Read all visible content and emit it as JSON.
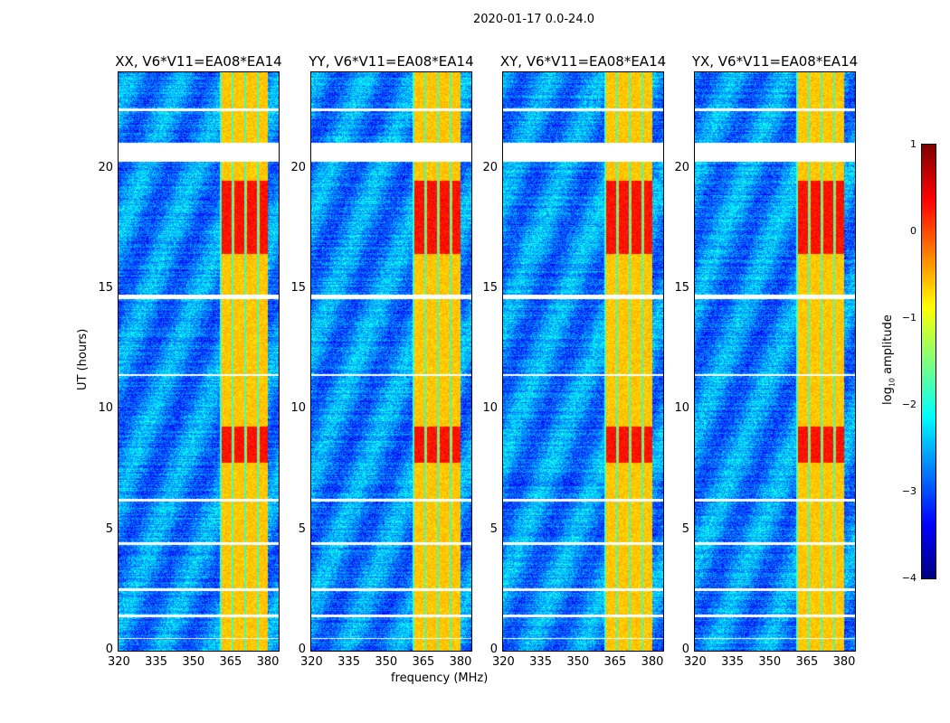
{
  "figure_title": "2020-01-17 0.0-24.0",
  "chart_data": {
    "type": "heatmap",
    "title": "2020-01-17 0.0-24.0",
    "xlabel": "frequency (MHz)",
    "ylabel": "UT (hours)",
    "xlim": [
      320,
      384.5
    ],
    "ylim": [
      0,
      24
    ],
    "xticks": [
      "320",
      "335",
      "350",
      "365",
      "380"
    ],
    "yticks": [
      "0",
      "5",
      "10",
      "15",
      "20"
    ],
    "panels": [
      {
        "title": "XX, V6*V11=EA08*EA14"
      },
      {
        "title": "YY, V6*V11=EA08*EA14"
      },
      {
        "title": "XY, V6*V11=EA08*EA14"
      },
      {
        "title": "YX, V6*V11=EA08*EA14"
      }
    ],
    "colorbar": {
      "label_main": "log",
      "label_sub": "10",
      "label_tail": " amplitude",
      "range": [
        -4,
        1
      ],
      "ticks": [
        "1",
        "0",
        "−1",
        "−2",
        "−3",
        "−4"
      ],
      "colormap": "jet"
    },
    "background_log_amplitude": -2.7,
    "rfi_band_mhz": [
      360.5,
      380
    ],
    "rfi_log_amplitude": -0.6,
    "strong_rfi_hours": [
      [
        7.8,
        9.3
      ],
      [
        16.5,
        19.5
      ]
    ],
    "flagged_hours": [
      [
        20.3,
        21.1
      ],
      [
        22.4,
        22.5
      ],
      [
        14.6,
        14.8
      ],
      [
        4.4,
        4.5
      ],
      [
        2.5,
        2.6
      ],
      [
        1.4,
        1.5
      ],
      [
        0.5,
        0.55
      ],
      [
        11.4,
        11.5
      ],
      [
        6.2,
        6.3
      ]
    ]
  }
}
